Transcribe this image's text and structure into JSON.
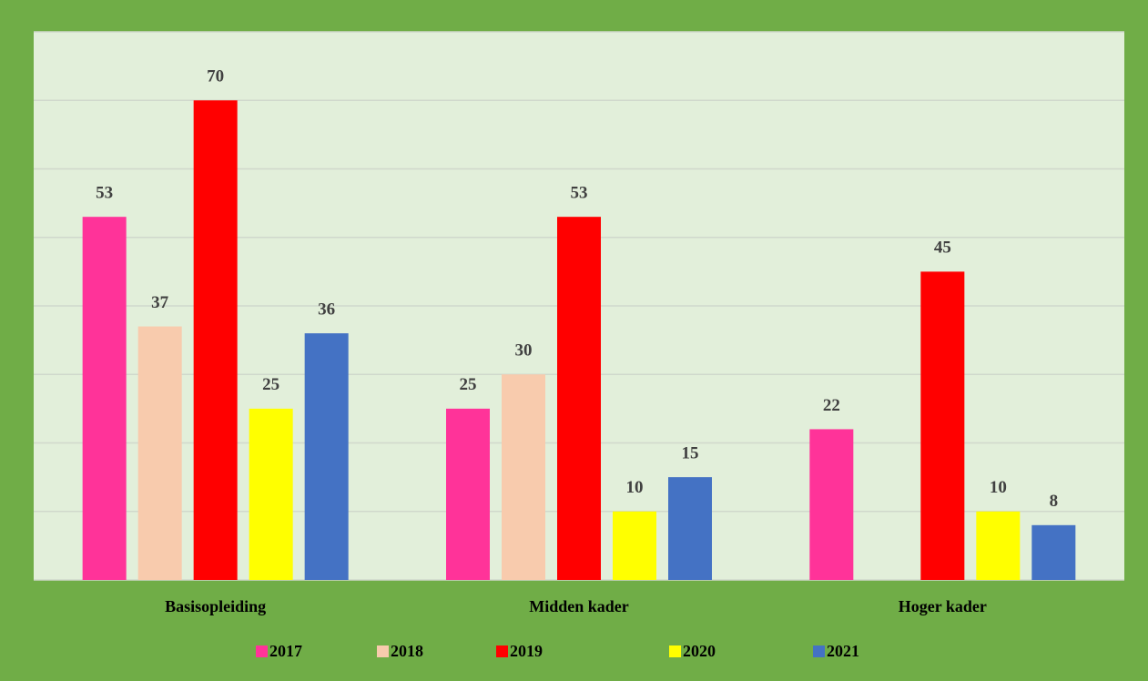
{
  "chart_data": {
    "type": "bar",
    "categories": [
      "Basisopleiding",
      "Midden kader",
      "Hoger kader"
    ],
    "series": [
      {
        "name": "2017",
        "color": "#ff3399",
        "values": [
          53,
          25,
          22
        ]
      },
      {
        "name": "2018",
        "color": "#f8cbad",
        "values": [
          37,
          30,
          null
        ]
      },
      {
        "name": "2019",
        "color": "#ff0000",
        "values": [
          70,
          53,
          45
        ]
      },
      {
        "name": "2020",
        "color": "#ffff00",
        "values": [
          25,
          10,
          10
        ]
      },
      {
        "name": "2021",
        "color": "#4472c4",
        "values": [
          36,
          15,
          8
        ]
      }
    ],
    "ylim": [
      0,
      80
    ],
    "yticks": [
      0,
      10,
      20,
      30,
      40,
      50,
      60,
      70,
      80
    ],
    "grid": true,
    "legend": "bottom"
  }
}
